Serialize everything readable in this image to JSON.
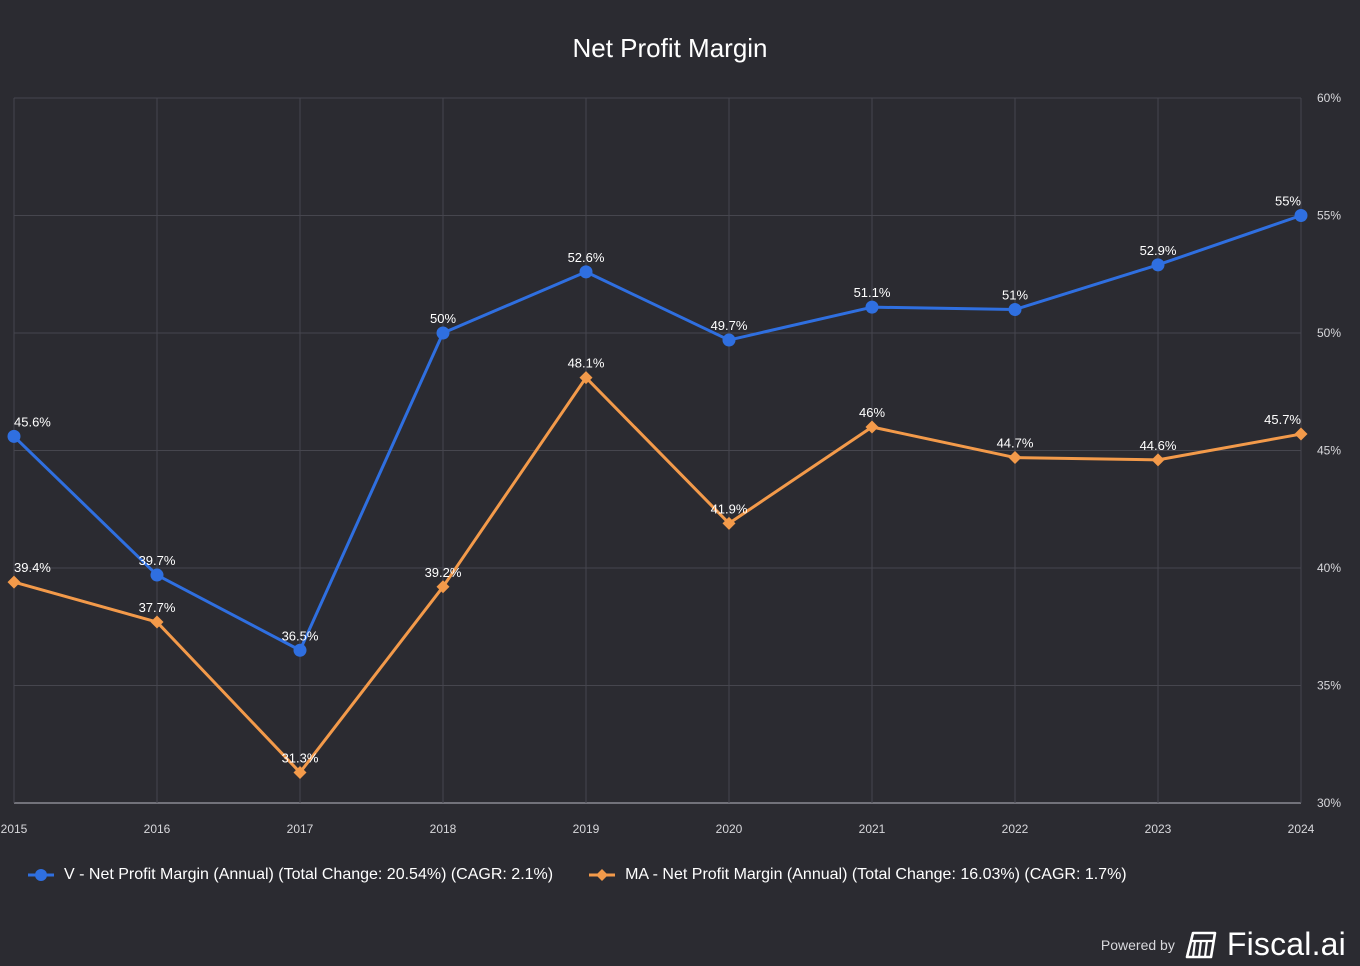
{
  "chart_data": {
    "type": "line",
    "title": "Net Profit Margin",
    "x": [
      "2015",
      "2016",
      "2017",
      "2018",
      "2019",
      "2020",
      "2021",
      "2022",
      "2023",
      "2024"
    ],
    "ylim": [
      30,
      60
    ],
    "yticks": [
      60,
      55,
      50,
      45,
      40,
      35,
      30
    ],
    "ytick_suffix": "%",
    "y_axis_side": "right",
    "grid": true,
    "legend_position": "bottom-left",
    "series": [
      {
        "name": "V - Net Profit Margin (Annual) (Total Change: 20.54%) (CAGR: 2.1%)",
        "color": "#2f6fe0",
        "marker": "circle",
        "values": [
          45.6,
          39.7,
          36.5,
          50,
          52.6,
          49.7,
          51.1,
          51,
          52.9,
          55
        ],
        "labels": [
          "45.6%",
          "39.7%",
          "36.5%",
          "50%",
          "52.6%",
          "49.7%",
          "51.1%",
          "51%",
          "52.9%",
          "55%"
        ]
      },
      {
        "name": "MA - Net Profit Margin (Annual) (Total Change: 16.03%) (CAGR: 1.7%)",
        "color": "#f39a4a",
        "marker": "diamond",
        "values": [
          39.4,
          37.7,
          31.3,
          39.2,
          48.1,
          41.9,
          46,
          44.7,
          44.6,
          45.7
        ],
        "labels": [
          "39.4%",
          "37.7%",
          "31.3%",
          "39.2%",
          "48.1%",
          "41.9%",
          "46%",
          "44.7%",
          "44.6%",
          "45.7%"
        ]
      }
    ]
  },
  "legend": {
    "v_label": "V - Net Profit Margin (Annual) (Total Change: 20.54%) (CAGR: 2.1%)",
    "ma_label": "MA - Net Profit Margin (Annual) (Total Change: 16.03%) (CAGR: 1.7%)"
  },
  "footer": {
    "powered_by": "Powered by",
    "brand": "Fiscal.ai"
  }
}
